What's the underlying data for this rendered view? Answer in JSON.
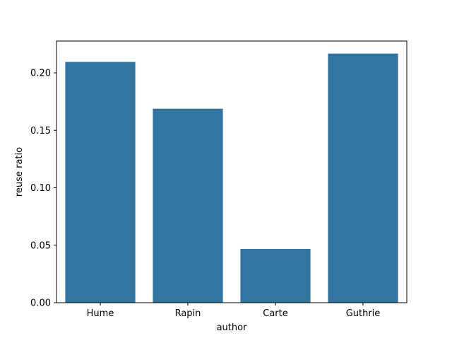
{
  "chart_data": {
    "type": "bar",
    "categories": [
      "Hume",
      "Rapin",
      "Carte",
      "Guthrie"
    ],
    "values": [
      0.2095,
      0.1688,
      0.0468,
      0.2168
    ],
    "xlabel": "author",
    "ylabel": "reuse ratio",
    "ylim": [
      0,
      0.2277
    ],
    "yticks": [
      0.0,
      0.05,
      0.1,
      0.15,
      0.2
    ],
    "ytick_labels": [
      "0.00",
      "0.05",
      "0.10",
      "0.15",
      "0.20"
    ],
    "grid": false,
    "bar_color": "#3274a1"
  }
}
